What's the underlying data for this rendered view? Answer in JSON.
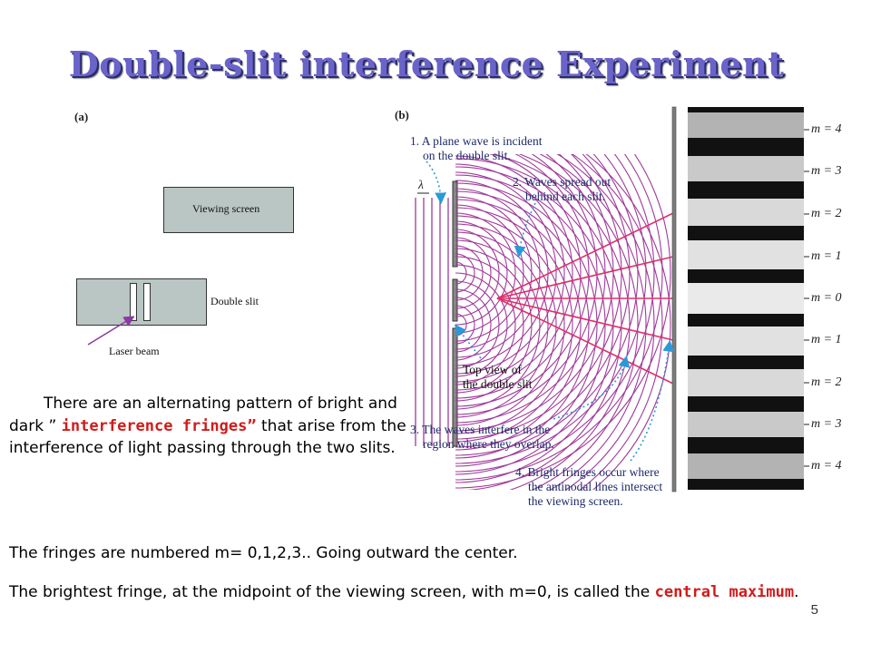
{
  "slide": {
    "title": "Double-slit interference Experiment",
    "page_number": "5"
  },
  "figure_a": {
    "label": "(a)",
    "viewing_screen": "Viewing screen",
    "double_slit": "Double slit",
    "laser_beam": "Laser beam"
  },
  "figure_b": {
    "label": "(b)",
    "lambda": "λ",
    "note1": [
      "1. A plane wave is incident",
      "on the double slit."
    ],
    "note2": [
      "2. Waves spread out",
      "behind each slit."
    ],
    "top_view": [
      "Top view of",
      "the double slit"
    ],
    "note3": [
      "3. The waves interfere in the",
      "region where they overlap."
    ],
    "note4": [
      "4. Bright fringes occur where",
      "the antinodal lines intersect",
      "the viewing screen."
    ],
    "order_labels": [
      "m = 4",
      "m = 3",
      "m = 2",
      "m = 1",
      "m = 0",
      "m = 1",
      "m = 2",
      "m = 3",
      "m = 4"
    ]
  },
  "text": {
    "para1_a": "There are an alternating pattern of bright and dark ” ",
    "para1_red": "interference fringes”",
    "para1_b": " that arise from the interference of light passing through the two slits.",
    "para2": "The fringes are numbered m= 0,1,2,3.. Going outward the center.",
    "para3_a": "The brightest fringe, at the midpoint of the viewing screen, with m=0, is called the ",
    "para3_red": "central maximum",
    "para3_b": "."
  },
  "colors": {
    "title": "#6a63c9",
    "wave": "#a03a9a",
    "antinodal": "#e0306a",
    "annotation": "#1d2a6b",
    "arrow": "#2a9ad6",
    "emphasis": "#d21b1b"
  }
}
